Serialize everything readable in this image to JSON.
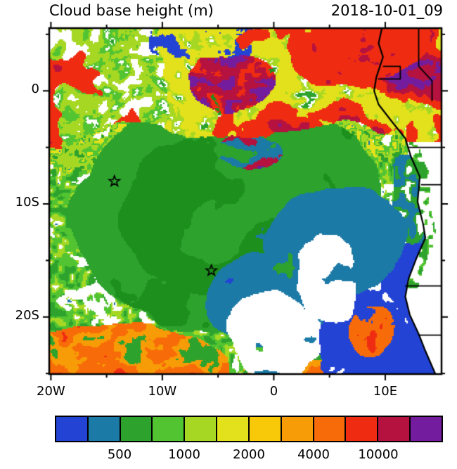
{
  "header": {
    "title": "Cloud base height (m)",
    "datetime": "2018-10-01_09"
  },
  "axes": {
    "lat_ticks": [
      {
        "label": "0",
        "value": 0
      },
      {
        "label": "10S",
        "value": -10
      },
      {
        "label": "20S",
        "value": -20
      }
    ],
    "lon_ticks": [
      {
        "label": "20W",
        "value": -20
      },
      {
        "label": "10W",
        "value": -10
      },
      {
        "label": "0",
        "value": 0
      },
      {
        "label": "10E",
        "value": 10
      }
    ],
    "minor_lat_ticks": [
      5,
      -5,
      -15,
      -25
    ],
    "minor_lon_ticks": [
      -15,
      -5,
      5
    ],
    "lon_range": [
      -20.15,
      15.05
    ],
    "lat_range": [
      -25.05,
      5.55
    ]
  },
  "colorbar": {
    "colors": [
      "#2343d4",
      "#1b7aa6",
      "#2da22d",
      "#52c432",
      "#a6d823",
      "#e3e11c",
      "#f7c908",
      "#f79b06",
      "#f76b09",
      "#ef2c12",
      "#b5123f",
      "#731d9e"
    ],
    "labels": [
      {
        "text": "500",
        "boundary": 2
      },
      {
        "text": "1000",
        "boundary": 4
      },
      {
        "text": "2000",
        "boundary": 6
      },
      {
        "text": "4000",
        "boundary": 8
      },
      {
        "text": "10000",
        "boundary": 10
      }
    ]
  },
  "markers": [
    {
      "symbol": "star",
      "lon": -14.3,
      "lat": -8.0
    },
    {
      "symbol": "star",
      "lon": -5.6,
      "lat": -15.9
    }
  ],
  "chart_data": {
    "type": "heatmap",
    "title": "Cloud base height (m)",
    "time_label": "2018-10-01_09",
    "units": "m",
    "lon_range": [
      -20.15,
      15.05
    ],
    "lat_range": [
      -25.05,
      5.55
    ],
    "colorbar": {
      "n_colors": 12,
      "tick_values": [
        500,
        1000,
        2000,
        4000,
        10000
      ],
      "colors": [
        "#2343d4",
        "#1b7aa6",
        "#2da22d",
        "#52c432",
        "#a6d823",
        "#e3e11c",
        "#f7c908",
        "#f79b06",
        "#f76b09",
        "#ef2c12",
        "#b5123f",
        "#731d9e"
      ]
    },
    "markers": [
      {
        "symbol": "star",
        "lon": -14.3,
        "lat": -8.0
      },
      {
        "symbol": "star",
        "lon": -5.6,
        "lat": -15.9
      }
    ],
    "field_summary": [
      {
        "region": "central SE Atlantic stratocumulus deck (4S-17S, 15W-3E)",
        "color": "green",
        "value_band": "500-1000"
      },
      {
        "region": "northern band (5N-3S) and Gulf of Guinea",
        "color": "yellow/red/maroon/purple patches",
        "value_band": "2000-10000+"
      },
      {
        "region": "coastal Angola/Namibia ocean wedge",
        "color": "blue/steel-blue",
        "value_band": "below 500"
      },
      {
        "region": "southwest and south-central patches",
        "color": "orange/red",
        "value_band": "4000-10000"
      },
      {
        "region": "western flank speckle",
        "color": "light green/yellow-green with white gaps",
        "value_band": "1000-2000"
      },
      {
        "region": "inland southern Africa",
        "color": "white (no data)",
        "value_band": null
      }
    ]
  }
}
